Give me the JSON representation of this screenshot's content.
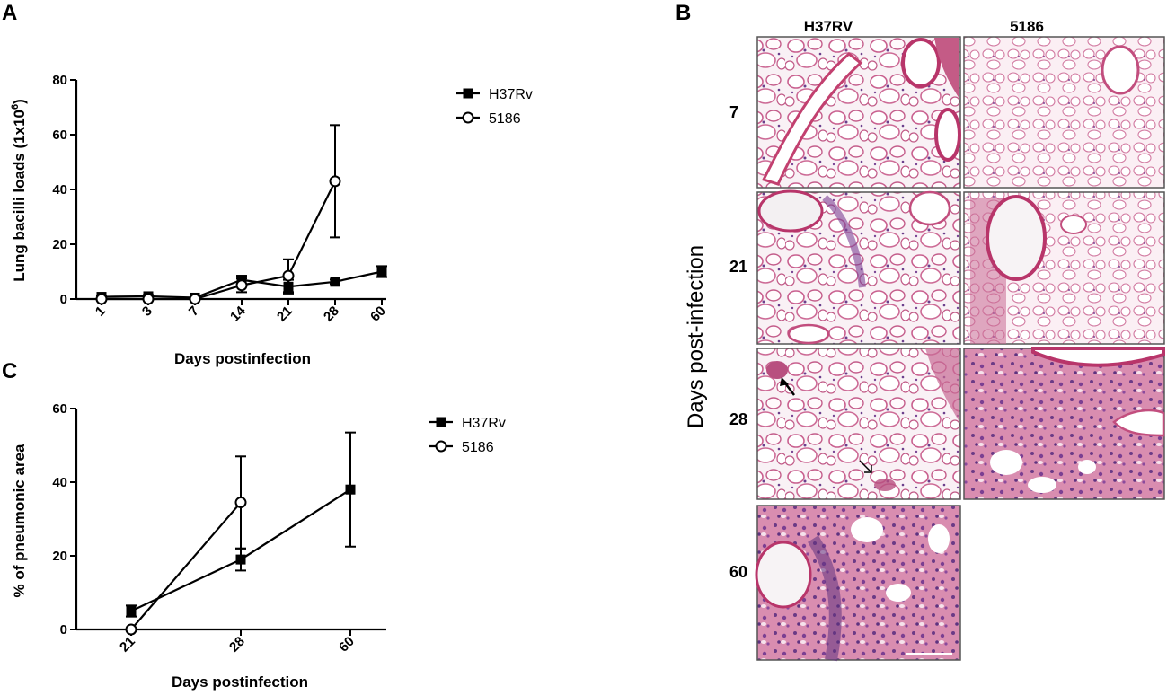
{
  "panels": {
    "a": "A",
    "b": "B",
    "c": "C"
  },
  "chart_data": [
    {
      "id": "A",
      "type": "line",
      "categories": [
        "1",
        "3",
        "7",
        "14",
        "21",
        "28",
        "60"
      ],
      "xlabel": "Days postinfection",
      "ylabel": "Lung bacilli loads (1x10",
      "ylabel_sup": "6",
      "ylabel_end": ")",
      "ylim": [
        0,
        80
      ],
      "yticks": [
        0,
        20,
        40,
        60,
        80
      ],
      "legend_position": "top-right",
      "series": [
        {
          "name": "H37Rv",
          "marker": "filled-square",
          "values": [
            0.8,
            1.0,
            0.5,
            7.0,
            4.5,
            6.3,
            10.0
          ],
          "err": [
            0.5,
            0.5,
            0.3,
            1.5,
            2.5,
            0.8,
            2.0
          ]
        },
        {
          "name": "5186",
          "marker": "open-circle",
          "values": [
            0.0,
            0.0,
            0.0,
            5.0,
            8.5,
            43.0,
            null
          ],
          "err": [
            0.0,
            0.0,
            0.0,
            2.5,
            6.0,
            20.5,
            null
          ]
        }
      ]
    },
    {
      "id": "C",
      "type": "line",
      "categories": [
        "21",
        "28",
        "60"
      ],
      "xlabel": "Days postinfection",
      "ylabel": "% of pneumonic area",
      "ylim": [
        0,
        60
      ],
      "yticks": [
        0,
        20,
        40,
        60
      ],
      "legend_position": "top-right",
      "series": [
        {
          "name": "H37Rv",
          "marker": "filled-square",
          "values": [
            5.0,
            19.0,
            38.0
          ],
          "err": [
            1.5,
            3.0,
            15.5
          ]
        },
        {
          "name": "5186",
          "marker": "open-circle",
          "values": [
            0.0,
            34.5,
            null
          ],
          "err": [
            0.0,
            12.5,
            null
          ]
        }
      ]
    }
  ],
  "histology": {
    "side_title": "Days post-infection",
    "columns": [
      "H37RV",
      "5186"
    ],
    "rows": [
      {
        "day": "7",
        "cells": 2
      },
      {
        "day": "21",
        "cells": 2
      },
      {
        "day": "28",
        "cells": 2
      },
      {
        "day": "60",
        "cells": 1
      }
    ]
  }
}
